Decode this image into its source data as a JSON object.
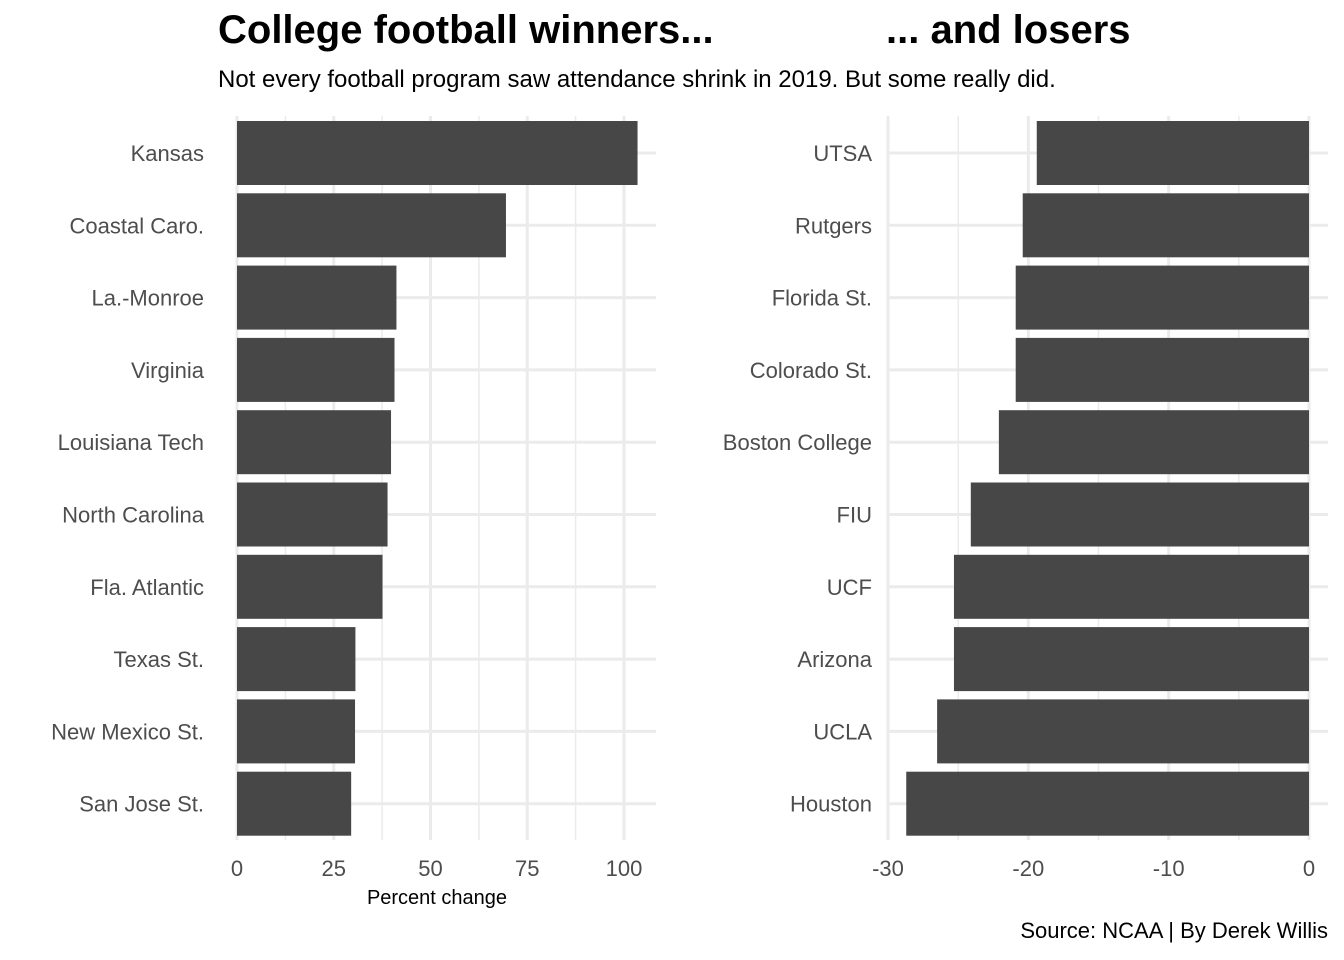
{
  "header": {
    "title_left": "College football winners...",
    "title_right": "... and losers",
    "subtitle": "Not every football program saw attendance shrink in 2019. But some really did.",
    "caption": "Source: NCAA | By Derek Willis"
  },
  "colors": {
    "bar": "#474747",
    "grid": "#ebebeb",
    "tick_label": "#4d4d4d"
  },
  "chart_data": [
    {
      "type": "bar",
      "orientation": "horizontal",
      "title": "College football winners...",
      "subtitle": "Not every football program saw attendance shrink in 2019. But some really did.",
      "xlabel": "Percent change",
      "ylabel": "",
      "xlim": [
        0,
        108
      ],
      "xticks": [
        0,
        25,
        50,
        75,
        100
      ],
      "grid": true,
      "categories": [
        "Kansas",
        "Coastal Caro.",
        "La.-Monroe",
        "Virginia",
        "Louisiana Tech",
        "North Carolina",
        "Fla. Atlantic",
        "Texas St.",
        "New Mexico St.",
        "San Jose St."
      ],
      "values": [
        103.5,
        69.5,
        41.2,
        40.7,
        39.8,
        38.9,
        37.6,
        30.6,
        30.5,
        29.5
      ]
    },
    {
      "type": "bar",
      "orientation": "horizontal",
      "title": "... and losers",
      "xlabel": "",
      "ylabel": "",
      "xlim": [
        -30,
        0
      ],
      "xticks": [
        -30,
        -20,
        -10,
        0
      ],
      "grid": true,
      "categories": [
        "UTSA",
        "Rutgers",
        "Florida St.",
        "Colorado St.",
        "Boston College",
        "FIU",
        "UCF",
        "Arizona",
        "UCLA",
        "Houston"
      ],
      "values": [
        -19.4,
        -20.4,
        -20.9,
        -20.9,
        -22.1,
        -24.1,
        -25.3,
        -25.3,
        -26.5,
        -28.7
      ]
    }
  ]
}
